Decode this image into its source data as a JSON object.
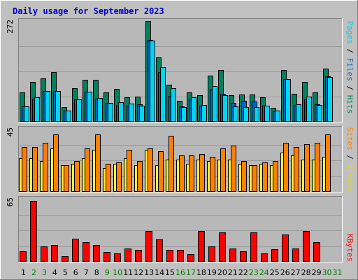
{
  "title": "Daily usage for September 2023",
  "colors": {
    "page_bg": "#c0c0c0",
    "panel_bg": "#b8b8b8",
    "pages": "#00d4f0",
    "files": "#0064c8",
    "hits": "#00805e",
    "sites": "#ff8000",
    "visits": "#ffee33",
    "kbytes": "#ff0000",
    "weekend_day": "#008000",
    "weekday_day": "#000000",
    "title": "#0000cc"
  },
  "right_labels": {
    "top": [
      {
        "text": "Pages",
        "color": "#00c8e8"
      },
      {
        "text": " / ",
        "color": "#000000"
      },
      {
        "text": "Files",
        "color": "#0064c8"
      },
      {
        "text": " / ",
        "color": "#000000"
      },
      {
        "text": "Hits",
        "color": "#008060"
      }
    ],
    "middle": [
      {
        "text": "Sites",
        "color": "#ff8000"
      },
      {
        "text": " / ",
        "color": "#000000"
      },
      {
        "text": "Visits",
        "color": "#e8d800"
      }
    ],
    "bottom": [
      {
        "text": "KBytes",
        "color": "#ff0000"
      }
    ]
  },
  "chart_data": [
    {
      "type": "bar",
      "panel": "hits-files-pages",
      "ymax_label": "272",
      "ylim": [
        0,
        272
      ],
      "x": [
        1,
        2,
        3,
        4,
        5,
        6,
        7,
        8,
        9,
        10,
        11,
        12,
        13,
        14,
        15,
        16,
        17,
        18,
        19,
        20,
        21,
        22,
        23,
        24,
        25,
        26,
        27,
        28,
        29,
        30,
        31
      ],
      "series": [
        {
          "name": "Hits",
          "color_key": "hits",
          "values": [
            79,
            108,
            117,
            134,
            40,
            90,
            113,
            113,
            79,
            88,
            66,
            68,
            272,
            173,
            100,
            56,
            79,
            72,
            124,
            140,
            71,
            73,
            73,
            66,
            38,
            140,
            76,
            108,
            79,
            143,
            0
          ]
        },
        {
          "name": "Files",
          "color_key": "files",
          "values": [
            42,
            62,
            84,
            84,
            30,
            60,
            82,
            63,
            51,
            45,
            44,
            48,
            221,
            134,
            70,
            42,
            62,
            44,
            88,
            76,
            51,
            56,
            55,
            44,
            29,
            115,
            46,
            60,
            48,
            122,
            0
          ]
        },
        {
          "name": "Pages",
          "color_key": "pages",
          "values": [
            42,
            66,
            84,
            84,
            30,
            60,
            82,
            65,
            51,
            52,
            50,
            44,
            220,
            148,
            90,
            40,
            67,
            45,
            97,
            72,
            41,
            40,
            40,
            44,
            30,
            115,
            48,
            68,
            46,
            120,
            0
          ]
        }
      ]
    },
    {
      "type": "bar",
      "panel": "visits-sites",
      "ymax_label": "45",
      "ylim": [
        0,
        45
      ],
      "x": [
        1,
        2,
        3,
        4,
        5,
        6,
        7,
        8,
        9,
        10,
        11,
        12,
        13,
        14,
        15,
        16,
        17,
        18,
        19,
        20,
        21,
        22,
        23,
        24,
        25,
        26,
        27,
        28,
        29,
        30,
        31
      ],
      "series": [
        {
          "name": "Visits",
          "color_key": "visits",
          "values": [
            24,
            24,
            22,
            31,
            19,
            20,
            24,
            30,
            17,
            20,
            24,
            19,
            30,
            19,
            23,
            23,
            20,
            23,
            22,
            23,
            23,
            20,
            19,
            20,
            19,
            28,
            26,
            23,
            23,
            25,
            0
          ]
        },
        {
          "name": "Sites",
          "color_key": "sites",
          "values": [
            32,
            32,
            35,
            41,
            19,
            22,
            31,
            41,
            20,
            21,
            30,
            22,
            31,
            29,
            40,
            26,
            26,
            27,
            25,
            31,
            33,
            22,
            19,
            21,
            22,
            35,
            32,
            34,
            35,
            41,
            0
          ]
        }
      ]
    },
    {
      "type": "bar",
      "panel": "kbytes",
      "ymax_label": "65",
      "ylim": [
        0,
        65
      ],
      "x": [
        1,
        2,
        3,
        4,
        5,
        6,
        7,
        8,
        9,
        10,
        11,
        12,
        13,
        14,
        15,
        16,
        17,
        18,
        19,
        20,
        21,
        22,
        23,
        24,
        25,
        26,
        27,
        28,
        29,
        30,
        31
      ],
      "series": [
        {
          "name": "KBytes",
          "color_key": "kbytes",
          "values": [
            11,
            63,
            16,
            17,
            6,
            24,
            20,
            17,
            10,
            9,
            14,
            12,
            32,
            23,
            12,
            12,
            8,
            32,
            16,
            30,
            14,
            11,
            30,
            9,
            13,
            28,
            14,
            32,
            20,
            0,
            0
          ]
        }
      ]
    }
  ],
  "days": [
    {
      "label": "1",
      "weekend": false
    },
    {
      "label": "2",
      "weekend": true
    },
    {
      "label": "3",
      "weekend": true
    },
    {
      "label": "4",
      "weekend": false
    },
    {
      "label": "5",
      "weekend": false
    },
    {
      "label": "6",
      "weekend": false
    },
    {
      "label": "7",
      "weekend": false
    },
    {
      "label": "8",
      "weekend": false
    },
    {
      "label": "9",
      "weekend": true
    },
    {
      "label": "10",
      "weekend": true
    },
    {
      "label": "11",
      "weekend": false
    },
    {
      "label": "12",
      "weekend": false
    },
    {
      "label": "13",
      "weekend": false
    },
    {
      "label": "14",
      "weekend": false
    },
    {
      "label": "15",
      "weekend": false
    },
    {
      "label": "16",
      "weekend": true
    },
    {
      "label": "17",
      "weekend": true
    },
    {
      "label": "18",
      "weekend": false
    },
    {
      "label": "19",
      "weekend": false
    },
    {
      "label": "20",
      "weekend": false
    },
    {
      "label": "21",
      "weekend": false
    },
    {
      "label": "22",
      "weekend": false
    },
    {
      "label": "23",
      "weekend": true
    },
    {
      "label": "24",
      "weekend": true
    },
    {
      "label": "25",
      "weekend": false
    },
    {
      "label": "26",
      "weekend": false
    },
    {
      "label": "27",
      "weekend": false
    },
    {
      "label": "28",
      "weekend": false
    },
    {
      "label": "29",
      "weekend": false
    },
    {
      "label": "30",
      "weekend": true
    },
    {
      "label": "31",
      "weekend": true
    }
  ]
}
